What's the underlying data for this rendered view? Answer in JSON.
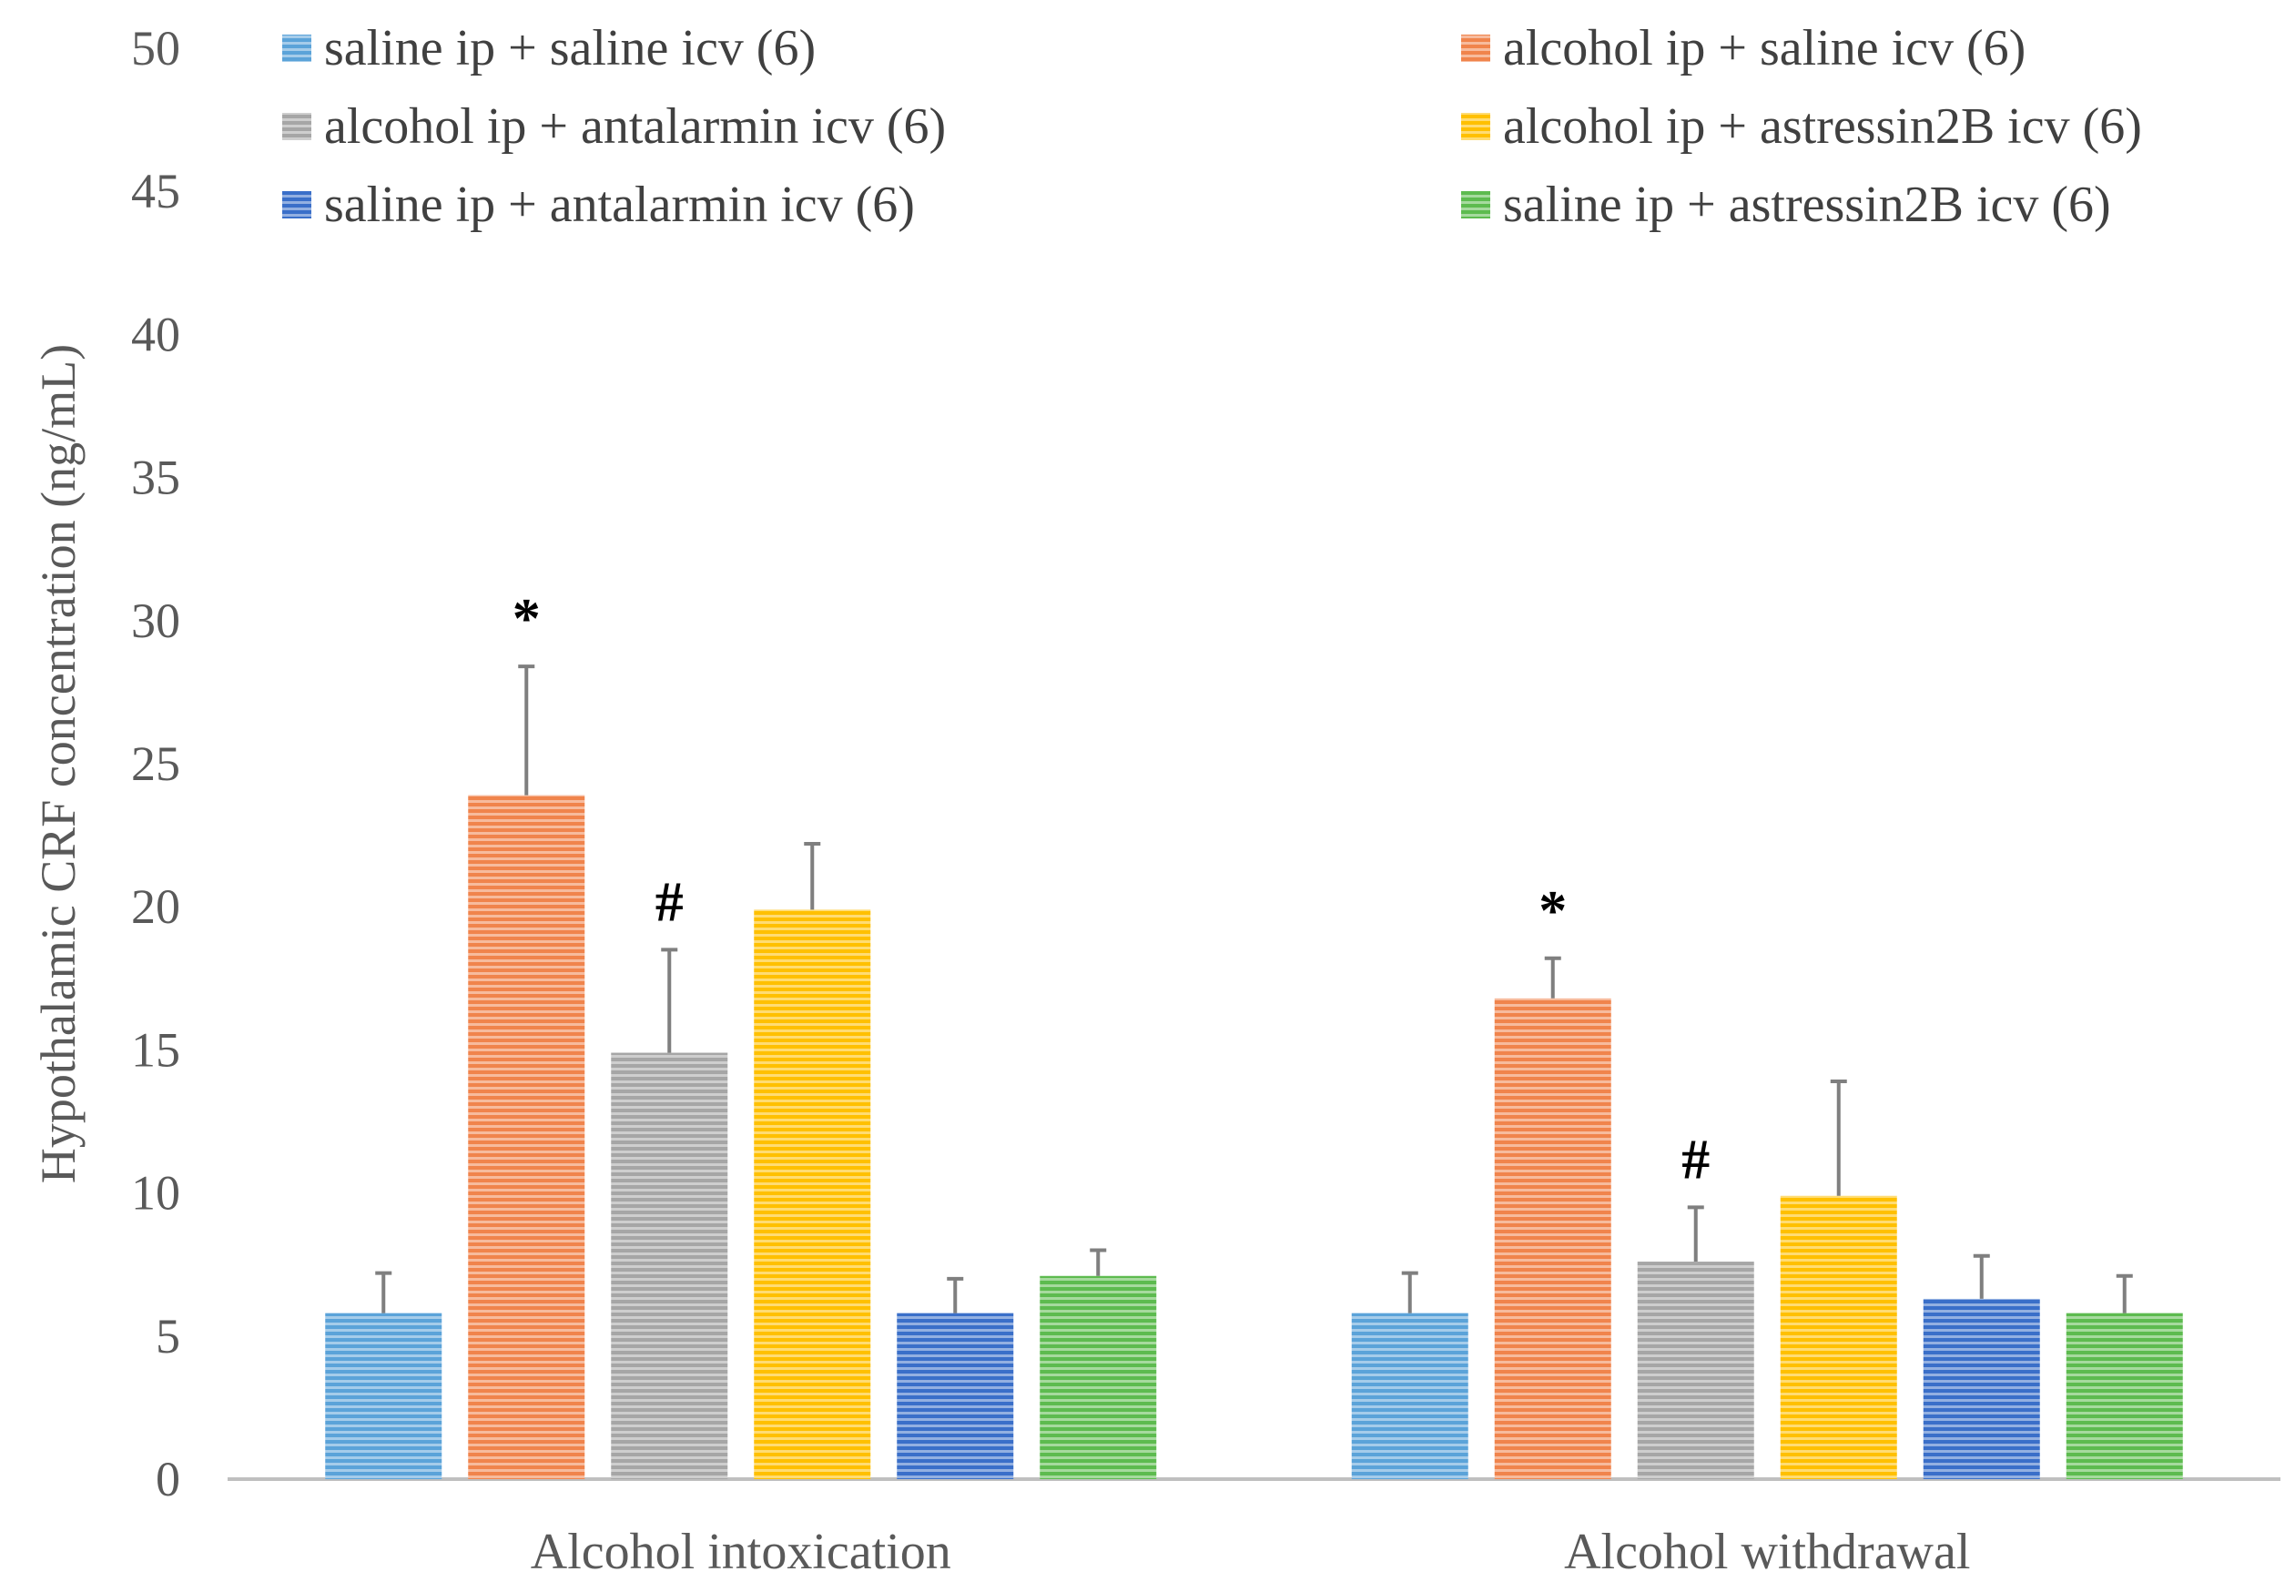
{
  "chart_data": {
    "type": "bar",
    "title": "",
    "xlabel": "",
    "ylabel": "Hypothalamic CRF concentration (ng/mL)",
    "ylim": [
      0,
      50
    ],
    "yticks": [
      0,
      5,
      10,
      15,
      20,
      25,
      30,
      35,
      40,
      45,
      50
    ],
    "grid": false,
    "legend_position": "top",
    "categories": [
      "Alcohol intoxication",
      "Alcohol withdrawal"
    ],
    "series": [
      {
        "name": "saline ip + saline icv (6)",
        "color": "#5BA3D9",
        "values": [
          5.8,
          5.8
        ],
        "errors": [
          1.4,
          1.4
        ],
        "annotations": [
          "",
          ""
        ]
      },
      {
        "name": "alcohol ip + saline icv (6)",
        "color": "#F0844C",
        "values": [
          23.9,
          16.8
        ],
        "errors": [
          4.5,
          1.4
        ],
        "annotations": [
          "*",
          "*"
        ]
      },
      {
        "name": "alcohol ip + antalarmin icv (6)",
        "color": "#A6A6A6",
        "values": [
          14.9,
          7.6
        ],
        "errors": [
          3.6,
          1.9
        ],
        "annotations": [
          "#",
          "#"
        ]
      },
      {
        "name": "alcohol ip + astressin2B icv (6)",
        "color": "#FFC000",
        "values": [
          19.9,
          9.9
        ],
        "errors": [
          2.3,
          4.0
        ],
        "annotations": [
          "",
          ""
        ]
      },
      {
        "name": "saline ip + antalarmin icv (6)",
        "color": "#3A6FC9",
        "values": [
          5.8,
          6.3
        ],
        "errors": [
          1.2,
          1.5
        ],
        "annotations": [
          "",
          ""
        ]
      },
      {
        "name": "saline ip + astressin2B icv (6)",
        "color": "#5DBB4F",
        "values": [
          7.1,
          5.8
        ],
        "errors": [
          0.9,
          1.3
        ],
        "annotations": [
          "",
          ""
        ]
      }
    ]
  }
}
